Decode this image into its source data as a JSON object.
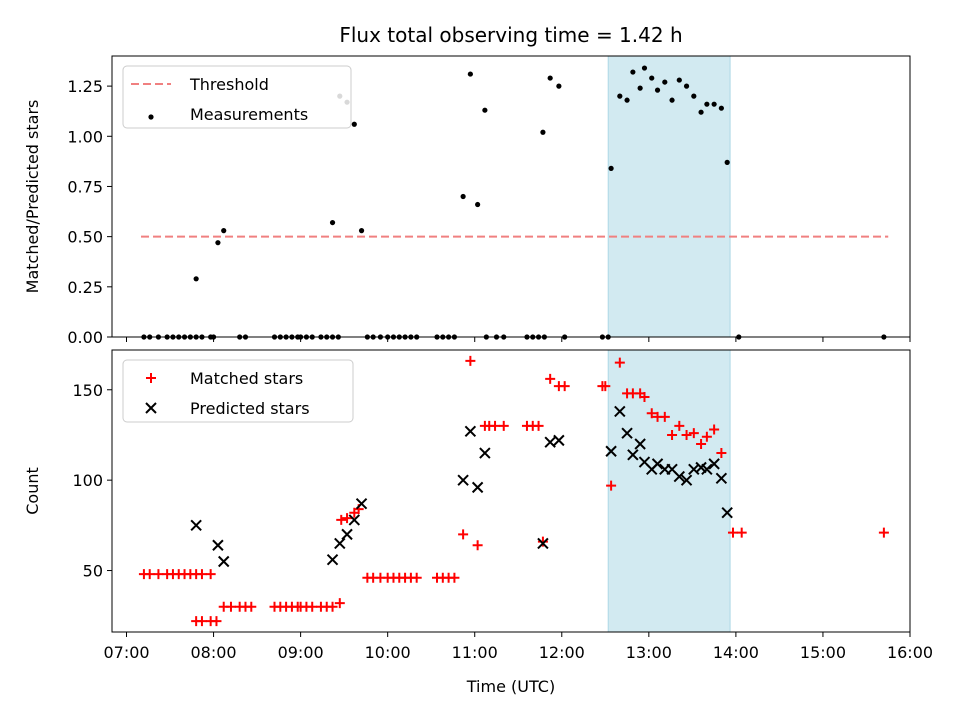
{
  "title": "Flux total observing time = 1.42 h",
  "colors": {
    "threshold": "#f08080",
    "matched": "#ff0000",
    "predicted": "#000000",
    "shade": "#add8e6"
  },
  "chart_data": [
    {
      "type": "scatter",
      "ylabel": "Matched/Predicted stars",
      "xlim": [
        "06:50",
        "16:00"
      ],
      "ylim": [
        0,
        1.4
      ],
      "yticks": [
        "0.00",
        "0.25",
        "0.50",
        "0.75",
        "1.00",
        "1.25"
      ],
      "legend": {
        "position": "top-left",
        "entries": [
          "Threshold",
          "Measurements"
        ]
      },
      "shaded_region": [
        "12:32",
        "13:56"
      ],
      "threshold": {
        "name": "Threshold",
        "value": 0.5,
        "x": [
          "07:10",
          "15:45"
        ]
      },
      "series": [
        {
          "name": "Measurements",
          "points": [
            [
              "07:12",
              0
            ],
            [
              "07:16",
              0
            ],
            [
              "07:22",
              0
            ],
            [
              "07:28",
              0
            ],
            [
              "07:32",
              0
            ],
            [
              "07:36",
              0
            ],
            [
              "07:40",
              0
            ],
            [
              "07:44",
              0
            ],
            [
              "07:48",
              0
            ],
            [
              "07:52",
              0
            ],
            [
              "07:58",
              0
            ],
            [
              "08:00",
              0
            ],
            [
              "07:48",
              0.29
            ],
            [
              "08:03",
              0.47
            ],
            [
              "08:07",
              0.53
            ],
            [
              "08:18",
              0
            ],
            [
              "08:22",
              0
            ],
            [
              "08:42",
              0
            ],
            [
              "08:46",
              0
            ],
            [
              "08:50",
              0
            ],
            [
              "08:54",
              0
            ],
            [
              "08:58",
              0
            ],
            [
              "09:00",
              0
            ],
            [
              "09:04",
              0
            ],
            [
              "09:08",
              0
            ],
            [
              "09:14",
              0
            ],
            [
              "09:18",
              0
            ],
            [
              "09:22",
              0
            ],
            [
              "09:26",
              0
            ],
            [
              "09:22",
              0.57
            ],
            [
              "09:27",
              1.2
            ],
            [
              "09:32",
              1.17
            ],
            [
              "09:37",
              1.06
            ],
            [
              "09:42",
              0.53
            ],
            [
              "09:46",
              0
            ],
            [
              "09:50",
              0
            ],
            [
              "09:55",
              0
            ],
            [
              "10:00",
              0
            ],
            [
              "10:04",
              0
            ],
            [
              "10:08",
              0
            ],
            [
              "10:12",
              0
            ],
            [
              "10:16",
              0
            ],
            [
              "10:20",
              0
            ],
            [
              "10:34",
              0
            ],
            [
              "10:38",
              0
            ],
            [
              "10:42",
              0
            ],
            [
              "10:46",
              0
            ],
            [
              "10:52",
              0.7
            ],
            [
              "10:57",
              1.31
            ],
            [
              "11:02",
              0.66
            ],
            [
              "11:07",
              1.13
            ],
            [
              "11:08",
              0
            ],
            [
              "11:15",
              0
            ],
            [
              "11:20",
              0
            ],
            [
              "11:36",
              0
            ],
            [
              "11:40",
              0
            ],
            [
              "11:44",
              0
            ],
            [
              "11:48",
              0
            ],
            [
              "12:02",
              0
            ],
            [
              "12:28",
              0
            ],
            [
              "12:32",
              0
            ],
            [
              "11:47",
              1.02
            ],
            [
              "11:52",
              1.29
            ],
            [
              "11:58",
              1.25
            ],
            [
              "12:34",
              0.84
            ],
            [
              "12:40",
              1.2
            ],
            [
              "12:45",
              1.18
            ],
            [
              "12:49",
              1.32
            ],
            [
              "12:54",
              1.24
            ],
            [
              "12:57",
              1.34
            ],
            [
              "13:02",
              1.29
            ],
            [
              "13:06",
              1.23
            ],
            [
              "13:11",
              1.27
            ],
            [
              "13:16",
              1.18
            ],
            [
              "13:21",
              1.28
            ],
            [
              "13:26",
              1.25
            ],
            [
              "13:31",
              1.2
            ],
            [
              "13:36",
              1.12
            ],
            [
              "13:40",
              1.16
            ],
            [
              "13:45",
              1.16
            ],
            [
              "13:50",
              1.14
            ],
            [
              "13:54",
              0.87
            ],
            [
              "14:02",
              0
            ],
            [
              "15:42",
              0
            ]
          ]
        }
      ]
    },
    {
      "type": "scatter",
      "ylabel": "Count",
      "xlabel": "Time (UTC)",
      "xlim": [
        "06:50",
        "16:00"
      ],
      "ylim": [
        16,
        172
      ],
      "yticks": [
        "50",
        "100",
        "150"
      ],
      "xticks": [
        "07:00",
        "08:00",
        "09:00",
        "10:00",
        "11:00",
        "12:00",
        "13:00",
        "14:00",
        "15:00",
        "16:00"
      ],
      "legend": {
        "position": "top-left",
        "entries": [
          "Matched stars",
          "Predicted stars"
        ]
      },
      "shaded_region": [
        "12:32",
        "13:56"
      ],
      "series": [
        {
          "name": "Matched stars",
          "marker": "plus",
          "points": [
            [
              "07:12",
              48
            ],
            [
              "07:16",
              48
            ],
            [
              "07:22",
              48
            ],
            [
              "07:28",
              48
            ],
            [
              "07:32",
              48
            ],
            [
              "07:36",
              48
            ],
            [
              "07:40",
              48
            ],
            [
              "07:44",
              48
            ],
            [
              "07:48",
              48
            ],
            [
              "07:52",
              48
            ],
            [
              "07:58",
              48
            ],
            [
              "07:48",
              22
            ],
            [
              "07:52",
              22
            ],
            [
              "07:58",
              22
            ],
            [
              "08:02",
              22
            ],
            [
              "08:07",
              30
            ],
            [
              "08:12",
              30
            ],
            [
              "08:18",
              30
            ],
            [
              "08:22",
              30
            ],
            [
              "08:26",
              30
            ],
            [
              "08:42",
              30
            ],
            [
              "08:46",
              30
            ],
            [
              "08:50",
              30
            ],
            [
              "08:54",
              30
            ],
            [
              "08:58",
              30
            ],
            [
              "09:00",
              30
            ],
            [
              "09:04",
              30
            ],
            [
              "09:08",
              30
            ],
            [
              "09:14",
              30
            ],
            [
              "09:18",
              30
            ],
            [
              "09:22",
              30
            ],
            [
              "09:27",
              32
            ],
            [
              "09:28",
              78
            ],
            [
              "09:32",
              79
            ],
            [
              "09:37",
              82
            ],
            [
              "09:40",
              84
            ],
            [
              "09:46",
              46
            ],
            [
              "09:50",
              46
            ],
            [
              "09:55",
              46
            ],
            [
              "10:00",
              46
            ],
            [
              "10:04",
              46
            ],
            [
              "10:08",
              46
            ],
            [
              "10:12",
              46
            ],
            [
              "10:16",
              46
            ],
            [
              "10:20",
              46
            ],
            [
              "10:34",
              46
            ],
            [
              "10:38",
              46
            ],
            [
              "10:42",
              46
            ],
            [
              "10:46",
              46
            ],
            [
              "10:52",
              70
            ],
            [
              "10:57",
              166
            ],
            [
              "11:02",
              64
            ],
            [
              "11:07",
              130
            ],
            [
              "11:10",
              130
            ],
            [
              "11:14",
              130
            ],
            [
              "11:20",
              130
            ],
            [
              "11:36",
              130
            ],
            [
              "11:40",
              130
            ],
            [
              "11:44",
              130
            ],
            [
              "11:47",
              66
            ],
            [
              "11:52",
              156
            ],
            [
              "11:58",
              152
            ],
            [
              "12:02",
              152
            ],
            [
              "12:28",
              152
            ],
            [
              "12:30",
              152
            ],
            [
              "12:34",
              97
            ],
            [
              "12:40",
              165
            ],
            [
              "12:45",
              148
            ],
            [
              "12:49",
              148
            ],
            [
              "12:54",
              148
            ],
            [
              "12:57",
              146
            ],
            [
              "13:02",
              137
            ],
            [
              "13:06",
              135
            ],
            [
              "13:11",
              135
            ],
            [
              "13:16",
              125
            ],
            [
              "13:21",
              130
            ],
            [
              "13:26",
              125
            ],
            [
              "13:31",
              126
            ],
            [
              "13:36",
              120
            ],
            [
              "13:40",
              124
            ],
            [
              "13:45",
              128
            ],
            [
              "13:50",
              115
            ],
            [
              "13:58",
              71
            ],
            [
              "14:04",
              71
            ],
            [
              "15:42",
              71
            ]
          ]
        },
        {
          "name": "Predicted stars",
          "marker": "x",
          "points": [
            [
              "07:48",
              75
            ],
            [
              "08:03",
              64
            ],
            [
              "08:07",
              55
            ],
            [
              "09:22",
              56
            ],
            [
              "09:27",
              65
            ],
            [
              "09:32",
              70
            ],
            [
              "09:37",
              78
            ],
            [
              "09:42",
              87
            ],
            [
              "10:52",
              100
            ],
            [
              "10:57",
              127
            ],
            [
              "11:02",
              96
            ],
            [
              "11:07",
              115
            ],
            [
              "11:47",
              65
            ],
            [
              "11:52",
              121
            ],
            [
              "11:58",
              122
            ],
            [
              "12:34",
              116
            ],
            [
              "12:40",
              138
            ],
            [
              "12:45",
              126
            ],
            [
              "12:49",
              114
            ],
            [
              "12:54",
              120
            ],
            [
              "12:57",
              110
            ],
            [
              "13:02",
              106
            ],
            [
              "13:06",
              109
            ],
            [
              "13:11",
              106
            ],
            [
              "13:16",
              106
            ],
            [
              "13:21",
              102
            ],
            [
              "13:26",
              100
            ],
            [
              "13:31",
              106
            ],
            [
              "13:36",
              107
            ],
            [
              "13:40",
              106
            ],
            [
              "13:45",
              109
            ],
            [
              "13:50",
              101
            ],
            [
              "13:54",
              82
            ]
          ]
        }
      ]
    }
  ]
}
